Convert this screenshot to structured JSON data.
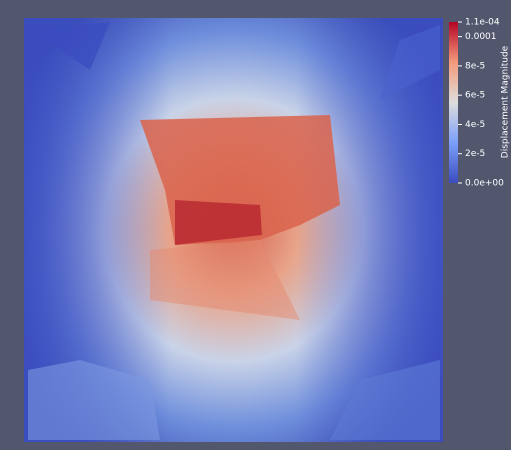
{
  "colorbar": {
    "title": "Displacement Magnitude",
    "range": [
      {
        "value": 0,
        "label": "0.0e+00"
      },
      {
        "value": 0.00011,
        "label": "1.1e-04"
      }
    ],
    "ticks": [
      {
        "value": 2e-05,
        "label": "2e-5"
      },
      {
        "value": 4e-05,
        "label": "4e-5"
      },
      {
        "value": 6e-05,
        "label": "6e-5"
      },
      {
        "value": 8e-05,
        "label": "8e-5"
      },
      0.0001
    ]
  }
}
